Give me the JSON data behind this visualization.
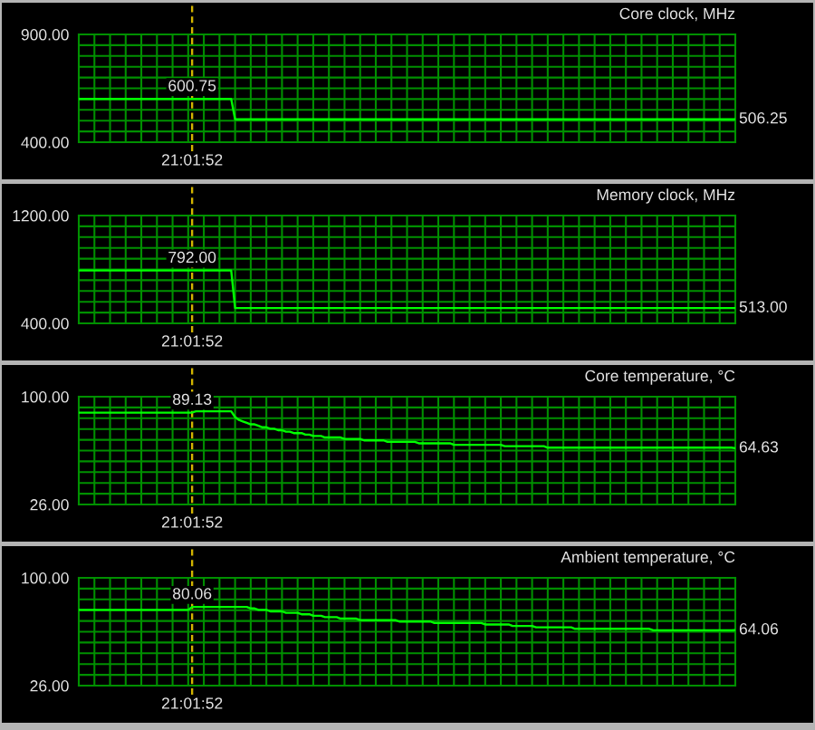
{
  "chart_data": [
    {
      "type": "line",
      "title": "Core clock, MHz",
      "color": "#00ff00",
      "grid": true,
      "categories": [
        null,
        null,
        null,
        null,
        null,
        null,
        null,
        null,
        null,
        null,
        null,
        null,
        null,
        null,
        null,
        null,
        null,
        null,
        null,
        null,
        null,
        null,
        null,
        null,
        null,
        null,
        null,
        null,
        null,
        "21:01:52",
        null,
        null,
        null,
        null,
        null,
        null,
        null,
        null,
        null,
        null,
        null,
        null,
        null,
        null,
        null,
        null,
        null,
        null,
        null,
        null,
        null,
        null,
        null,
        null,
        null,
        null,
        null,
        null,
        null,
        null,
        null,
        null,
        null,
        null,
        null,
        null,
        null,
        null,
        null,
        null,
        null,
        null,
        null,
        null,
        null,
        null,
        null,
        null,
        null,
        null,
        null,
        null,
        null,
        null,
        null,
        null,
        null,
        null,
        null,
        null,
        null,
        null,
        null,
        null,
        null,
        null,
        null,
        null,
        null,
        null,
        null,
        null,
        null,
        null,
        null,
        null,
        null,
        null,
        null,
        null,
        null,
        null,
        null,
        null,
        null,
        null,
        null,
        null,
        null,
        null,
        null,
        null,
        null,
        null,
        null,
        null,
        null,
        null,
        null,
        null,
        null,
        null,
        null,
        null,
        null,
        null,
        null,
        null,
        null,
        null,
        null,
        null,
        null,
        null,
        null,
        null,
        null,
        null,
        null,
        null,
        null,
        null,
        null,
        null,
        null,
        null,
        null,
        null,
        null,
        null,
        null,
        null,
        null,
        null,
        null,
        null,
        null,
        null,
        null
      ],
      "values": [
        600.75,
        600.75,
        600.75,
        600.75,
        600.75,
        600.75,
        600.75,
        600.75,
        600.75,
        600.75,
        600.75,
        600.75,
        600.75,
        600.75,
        600.75,
        600.75,
        600.75,
        600.75,
        600.75,
        600.75,
        600.75,
        600.75,
        600.75,
        600.75,
        600.75,
        600.75,
        600.75,
        600.75,
        600.75,
        600.75,
        600.75,
        600.75,
        600.75,
        600.75,
        600.75,
        600.75,
        600.75,
        600.75,
        600.75,
        600.75,
        506.25,
        506.25,
        506.25,
        506.25,
        506.25,
        506.25,
        506.25,
        506.25,
        506.25,
        506.25,
        506.25,
        506.25,
        506.25,
        506.25,
        506.25,
        506.25,
        506.25,
        506.25,
        506.25,
        506.25,
        506.25,
        506.25,
        506.25,
        506.25,
        506.25,
        506.25,
        506.25,
        506.25,
        506.25,
        506.25,
        506.25,
        506.25,
        506.25,
        506.25,
        506.25,
        506.25,
        506.25,
        506.25,
        506.25,
        506.25,
        506.25,
        506.25,
        506.25,
        506.25,
        506.25,
        506.25,
        506.25,
        506.25,
        506.25,
        506.25,
        506.25,
        506.25,
        506.25,
        506.25,
        506.25,
        506.25,
        506.25,
        506.25,
        506.25,
        506.25,
        506.25,
        506.25,
        506.25,
        506.25,
        506.25,
        506.25,
        506.25,
        506.25,
        506.25,
        506.25,
        506.25,
        506.25,
        506.25,
        506.25,
        506.25,
        506.25,
        506.25,
        506.25,
        506.25,
        506.25,
        506.25,
        506.25,
        506.25,
        506.25,
        506.25,
        506.25,
        506.25,
        506.25,
        506.25,
        506.25,
        506.25,
        506.25,
        506.25,
        506.25,
        506.25,
        506.25,
        506.25,
        506.25,
        506.25,
        506.25,
        506.25,
        506.25,
        506.25,
        506.25,
        506.25,
        506.25,
        506.25,
        506.25,
        506.25,
        506.25,
        506.25,
        506.25,
        506.25,
        506.25,
        506.25,
        506.25,
        506.25,
        506.25,
        506.25,
        506.25,
        506.25,
        506.25,
        506.25,
        506.25,
        506.25,
        506.25,
        506.25,
        506.25,
        506.25
      ],
      "value_labels": [
        null,
        null,
        null,
        null,
        null,
        null,
        null,
        null,
        null,
        null,
        null,
        null,
        null,
        null,
        null,
        null,
        null,
        null,
        null,
        null,
        null,
        null,
        null,
        null,
        null,
        null,
        null,
        null,
        null,
        "600.75",
        null,
        null,
        null,
        null,
        null,
        null,
        null,
        null,
        null,
        null,
        null,
        null,
        null,
        null,
        null,
        null,
        null,
        null,
        null,
        null,
        null,
        null,
        null,
        null,
        null,
        null,
        null,
        null,
        null,
        null,
        null,
        null,
        null,
        null,
        null,
        null,
        null,
        null,
        null,
        null,
        null,
        null,
        null,
        null,
        null,
        null,
        null,
        null,
        null,
        null,
        null,
        null,
        null,
        null,
        null,
        null,
        null,
        null,
        null,
        null,
        null,
        null,
        null,
        null,
        null,
        null,
        null,
        null,
        null,
        null,
        null,
        null,
        null,
        null,
        null,
        null,
        null,
        null,
        null,
        null,
        null,
        null,
        null,
        null,
        null,
        null,
        null,
        null,
        null,
        null,
        null,
        null,
        null,
        null,
        null,
        null,
        null,
        null,
        null,
        null,
        null,
        null,
        null,
        null,
        null,
        null,
        null,
        null,
        null,
        null,
        null,
        null,
        null,
        null,
        null,
        null,
        null,
        null,
        null,
        null,
        null,
        null,
        null,
        null,
        null,
        null,
        null,
        null,
        null,
        null,
        null,
        null,
        null,
        null,
        null,
        null,
        null,
        null,
        "506.25"
      ],
      "ylim": [
        400,
        900
      ],
      "yticks": [
        {
          "value": 400,
          "label": "400.00"
        },
        {
          "value": 450,
          "label": null
        },
        {
          "value": 500,
          "label": null
        },
        {
          "value": 550,
          "label": null
        },
        {
          "value": 600,
          "label": null
        },
        {
          "value": 650,
          "label": null
        },
        {
          "value": 700,
          "label": null
        },
        {
          "value": 750,
          "label": null
        },
        {
          "value": 800,
          "label": null
        },
        {
          "value": 850,
          "label": null
        },
        {
          "value": 900,
          "label": "900.00"
        }
      ],
      "ref_lines": [
        {
          "axis": "x",
          "value": "21:01:52",
          "color": "#d2b400",
          "line_style": "dashed"
        }
      ]
    },
    {
      "type": "line",
      "title": "Memory clock, MHz",
      "color": "#00ff00",
      "grid": true,
      "categories": [
        null,
        null,
        null,
        null,
        null,
        null,
        null,
        null,
        null,
        null,
        null,
        null,
        null,
        null,
        null,
        null,
        null,
        null,
        null,
        null,
        null,
        null,
        null,
        null,
        null,
        null,
        null,
        null,
        null,
        "21:01:52",
        null,
        null,
        null,
        null,
        null,
        null,
        null,
        null,
        null,
        null,
        null,
        null,
        null,
        null,
        null,
        null,
        null,
        null,
        null,
        null,
        null,
        null,
        null,
        null,
        null,
        null,
        null,
        null,
        null,
        null,
        null,
        null,
        null,
        null,
        null,
        null,
        null,
        null,
        null,
        null,
        null,
        null,
        null,
        null,
        null,
        null,
        null,
        null,
        null,
        null,
        null,
        null,
        null,
        null,
        null,
        null,
        null,
        null,
        null,
        null,
        null,
        null,
        null,
        null,
        null,
        null,
        null,
        null,
        null,
        null,
        null,
        null,
        null,
        null,
        null,
        null,
        null,
        null,
        null,
        null,
        null,
        null,
        null,
        null,
        null,
        null,
        null,
        null,
        null,
        null,
        null,
        null,
        null,
        null,
        null,
        null,
        null,
        null,
        null,
        null,
        null,
        null,
        null,
        null,
        null,
        null,
        null,
        null,
        null,
        null,
        null,
        null,
        null,
        null,
        null,
        null,
        null,
        null,
        null,
        null,
        null,
        null,
        null,
        null,
        null,
        null,
        null,
        null,
        null,
        null,
        null,
        null,
        null,
        null,
        null,
        null,
        null,
        null,
        null
      ],
      "values": [
        792,
        792,
        792,
        792,
        792,
        792,
        792,
        792,
        792,
        792,
        792,
        792,
        792,
        792,
        792,
        792,
        792,
        792,
        792,
        792,
        792,
        792,
        792,
        792,
        792,
        792,
        792,
        792,
        792,
        792,
        792,
        792,
        792,
        792,
        792,
        792,
        792,
        792,
        792,
        792,
        513,
        513,
        513,
        513,
        513,
        513,
        513,
        513,
        513,
        513,
        513,
        513,
        513,
        513,
        513,
        513,
        513,
        513,
        513,
        513,
        513,
        513,
        513,
        513,
        513,
        513,
        513,
        513,
        513,
        513,
        513,
        513,
        513,
        513,
        513,
        513,
        513,
        513,
        513,
        513,
        513,
        513,
        513,
        513,
        513,
        513,
        513,
        513,
        513,
        513,
        513,
        513,
        513,
        513,
        513,
        513,
        513,
        513,
        513,
        513,
        513,
        513,
        513,
        513,
        513,
        513,
        513,
        513,
        513,
        513,
        513,
        513,
        513,
        513,
        513,
        513,
        513,
        513,
        513,
        513,
        513,
        513,
        513,
        513,
        513,
        513,
        513,
        513,
        513,
        513,
        513,
        513,
        513,
        513,
        513,
        513,
        513,
        513,
        513,
        513,
        513,
        513,
        513,
        513,
        513,
        513,
        513,
        513,
        513,
        513,
        513,
        513,
        513,
        513,
        513,
        513,
        513,
        513,
        513,
        513,
        513,
        513,
        513,
        513,
        513,
        513,
        513,
        513,
        513
      ],
      "value_labels": [
        null,
        null,
        null,
        null,
        null,
        null,
        null,
        null,
        null,
        null,
        null,
        null,
        null,
        null,
        null,
        null,
        null,
        null,
        null,
        null,
        null,
        null,
        null,
        null,
        null,
        null,
        null,
        null,
        null,
        "792.00",
        null,
        null,
        null,
        null,
        null,
        null,
        null,
        null,
        null,
        null,
        null,
        null,
        null,
        null,
        null,
        null,
        null,
        null,
        null,
        null,
        null,
        null,
        null,
        null,
        null,
        null,
        null,
        null,
        null,
        null,
        null,
        null,
        null,
        null,
        null,
        null,
        null,
        null,
        null,
        null,
        null,
        null,
        null,
        null,
        null,
        null,
        null,
        null,
        null,
        null,
        null,
        null,
        null,
        null,
        null,
        null,
        null,
        null,
        null,
        null,
        null,
        null,
        null,
        null,
        null,
        null,
        null,
        null,
        null,
        null,
        null,
        null,
        null,
        null,
        null,
        null,
        null,
        null,
        null,
        null,
        null,
        null,
        null,
        null,
        null,
        null,
        null,
        null,
        null,
        null,
        null,
        null,
        null,
        null,
        null,
        null,
        null,
        null,
        null,
        null,
        null,
        null,
        null,
        null,
        null,
        null,
        null,
        null,
        null,
        null,
        null,
        null,
        null,
        null,
        null,
        null,
        null,
        null,
        null,
        null,
        null,
        null,
        null,
        null,
        null,
        null,
        null,
        null,
        null,
        null,
        null,
        null,
        null,
        null,
        null,
        null,
        null,
        null,
        "513.00"
      ],
      "ylim": [
        400,
        1200
      ],
      "yticks": [
        {
          "value": 400,
          "label": "400.00"
        },
        {
          "value": 480,
          "label": null
        },
        {
          "value": 560,
          "label": null
        },
        {
          "value": 640,
          "label": null
        },
        {
          "value": 720,
          "label": null
        },
        {
          "value": 800,
          "label": null
        },
        {
          "value": 880,
          "label": null
        },
        {
          "value": 960,
          "label": null
        },
        {
          "value": 1040,
          "label": null
        },
        {
          "value": 1120,
          "label": null
        },
        {
          "value": 1200,
          "label": "1200.00"
        }
      ],
      "ref_lines": [
        {
          "axis": "x",
          "value": "21:01:52",
          "color": "#d2b400",
          "line_style": "dashed"
        }
      ]
    },
    {
      "type": "line",
      "title": "Core temperature, °C",
      "color": "#00ff00",
      "grid": true,
      "categories": [
        null,
        null,
        null,
        null,
        null,
        null,
        null,
        null,
        null,
        null,
        null,
        null,
        null,
        null,
        null,
        null,
        null,
        null,
        null,
        null,
        null,
        null,
        null,
        null,
        null,
        null,
        null,
        null,
        null,
        "21:01:52",
        null,
        null,
        null,
        null,
        null,
        null,
        null,
        null,
        null,
        null,
        null,
        null,
        null,
        null,
        null,
        null,
        null,
        null,
        null,
        null,
        null,
        null,
        null,
        null,
        null,
        null,
        null,
        null,
        null,
        null,
        null,
        null,
        null,
        null,
        null,
        null,
        null,
        null,
        null,
        null,
        null,
        null,
        null,
        null,
        null,
        null,
        null,
        null,
        null,
        null,
        null,
        null,
        null,
        null,
        null,
        null,
        null,
        null,
        null,
        null,
        null,
        null,
        null,
        null,
        null,
        null,
        null,
        null,
        null,
        null,
        null,
        null,
        null,
        null,
        null,
        null,
        null,
        null,
        null,
        null,
        null,
        null,
        null,
        null,
        null,
        null,
        null,
        null,
        null,
        null,
        null,
        null,
        null,
        null,
        null,
        null,
        null,
        null,
        null,
        null,
        null,
        null,
        null,
        null,
        null,
        null,
        null,
        null,
        null,
        null,
        null,
        null,
        null,
        null,
        null,
        null,
        null,
        null,
        null,
        null,
        null,
        null,
        null,
        null,
        null,
        null,
        null,
        null,
        null,
        null,
        null,
        null,
        null,
        null,
        null,
        null,
        null,
        null,
        null
      ],
      "values": [
        89,
        89,
        89,
        89,
        89,
        89,
        89,
        89,
        89,
        89,
        89,
        89,
        89,
        89,
        89,
        89,
        89,
        89,
        89,
        89,
        89,
        89,
        89,
        89,
        89,
        89,
        89,
        89,
        89,
        89.13,
        90,
        90,
        90,
        90,
        90,
        90,
        90,
        90,
        90,
        90,
        86,
        84,
        83,
        82,
        81,
        81,
        80,
        79,
        79,
        78,
        78,
        77,
        77,
        76,
        76,
        75,
        75,
        75,
        74,
        74,
        73,
        73,
        73,
        72,
        72,
        72,
        72,
        72,
        71,
        71,
        71,
        71,
        71,
        70,
        70,
        70,
        70,
        70,
        70,
        69,
        69,
        69,
        69,
        69,
        69,
        69,
        69,
        68,
        68,
        68,
        68,
        68,
        68,
        68,
        68,
        68,
        67,
        67,
        67,
        67,
        67,
        67,
        67,
        67,
        67,
        67,
        67,
        67,
        67,
        66,
        66,
        66,
        66,
        66,
        66,
        66,
        66,
        66,
        66,
        66,
        65,
        65,
        65,
        65,
        65,
        65,
        65,
        65,
        65,
        65,
        65,
        65,
        65,
        65,
        65,
        65,
        65,
        65,
        65,
        65,
        65,
        65,
        65,
        65,
        65,
        65,
        65,
        65,
        65,
        65,
        65,
        65,
        65,
        65,
        65,
        65,
        65,
        65,
        65,
        65,
        65,
        65,
        65,
        65,
        65,
        65,
        65,
        65,
        64.63
      ],
      "value_labels": [
        null,
        null,
        null,
        null,
        null,
        null,
        null,
        null,
        null,
        null,
        null,
        null,
        null,
        null,
        null,
        null,
        null,
        null,
        null,
        null,
        null,
        null,
        null,
        null,
        null,
        null,
        null,
        null,
        null,
        "89.13",
        null,
        null,
        null,
        null,
        null,
        null,
        null,
        null,
        null,
        null,
        null,
        null,
        null,
        null,
        null,
        null,
        null,
        null,
        null,
        null,
        null,
        null,
        null,
        null,
        null,
        null,
        null,
        null,
        null,
        null,
        null,
        null,
        null,
        null,
        null,
        null,
        null,
        null,
        null,
        null,
        null,
        null,
        null,
        null,
        null,
        null,
        null,
        null,
        null,
        null,
        null,
        null,
        null,
        null,
        null,
        null,
        null,
        null,
        null,
        null,
        null,
        null,
        null,
        null,
        null,
        null,
        null,
        null,
        null,
        null,
        null,
        null,
        null,
        null,
        null,
        null,
        null,
        null,
        null,
        null,
        null,
        null,
        null,
        null,
        null,
        null,
        null,
        null,
        null,
        null,
        null,
        null,
        null,
        null,
        null,
        null,
        null,
        null,
        null,
        null,
        null,
        null,
        null,
        null,
        null,
        null,
        null,
        null,
        null,
        null,
        null,
        null,
        null,
        null,
        null,
        null,
        null,
        null,
        null,
        null,
        null,
        null,
        null,
        null,
        null,
        null,
        null,
        null,
        null,
        null,
        null,
        null,
        null,
        null,
        null,
        null,
        null,
        null,
        "64.63"
      ],
      "ylim": [
        26,
        100
      ],
      "yticks": [
        {
          "value": 26,
          "label": "26.00"
        },
        {
          "value": 33.4,
          "label": null
        },
        {
          "value": 40.8,
          "label": null
        },
        {
          "value": 48.2,
          "label": null
        },
        {
          "value": 55.6,
          "label": null
        },
        {
          "value": 63,
          "label": null
        },
        {
          "value": 70.4,
          "label": null
        },
        {
          "value": 77.8,
          "label": null
        },
        {
          "value": 85.2,
          "label": null
        },
        {
          "value": 92.6,
          "label": null
        },
        {
          "value": 100,
          "label": "100.00"
        }
      ],
      "ref_lines": [
        {
          "axis": "x",
          "value": "21:01:52",
          "color": "#d2b400",
          "line_style": "dashed"
        }
      ]
    },
    {
      "type": "line",
      "title": "Ambient temperature, °C",
      "color": "#00ff00",
      "grid": true,
      "categories": [
        null,
        null,
        null,
        null,
        null,
        null,
        null,
        null,
        null,
        null,
        null,
        null,
        null,
        null,
        null,
        null,
        null,
        null,
        null,
        null,
        null,
        null,
        null,
        null,
        null,
        null,
        null,
        null,
        null,
        "21:01:52",
        null,
        null,
        null,
        null,
        null,
        null,
        null,
        null,
        null,
        null,
        null,
        null,
        null,
        null,
        null,
        null,
        null,
        null,
        null,
        null,
        null,
        null,
        null,
        null,
        null,
        null,
        null,
        null,
        null,
        null,
        null,
        null,
        null,
        null,
        null,
        null,
        null,
        null,
        null,
        null,
        null,
        null,
        null,
        null,
        null,
        null,
        null,
        null,
        null,
        null,
        null,
        null,
        null,
        null,
        null,
        null,
        null,
        null,
        null,
        null,
        null,
        null,
        null,
        null,
        null,
        null,
        null,
        null,
        null,
        null,
        null,
        null,
        null,
        null,
        null,
        null,
        null,
        null,
        null,
        null,
        null,
        null,
        null,
        null,
        null,
        null,
        null,
        null,
        null,
        null,
        null,
        null,
        null,
        null,
        null,
        null,
        null,
        null,
        null,
        null,
        null,
        null,
        null,
        null,
        null,
        null,
        null,
        null,
        null,
        null,
        null,
        null,
        null,
        null,
        null,
        null,
        null,
        null,
        null,
        null,
        null,
        null,
        null,
        null,
        null,
        null,
        null,
        null,
        null,
        null,
        null,
        null,
        null,
        null,
        null,
        null,
        null,
        null,
        null
      ],
      "values": [
        78,
        78,
        78,
        78,
        78,
        78,
        78,
        78,
        78,
        78,
        78,
        78,
        78,
        78,
        78,
        78,
        78,
        78,
        78,
        78,
        78,
        78,
        78,
        78,
        78,
        78,
        78,
        78,
        78,
        80.06,
        80,
        80,
        80,
        80,
        80,
        80,
        80,
        80,
        80,
        80,
        80,
        80,
        80,
        80,
        79,
        79,
        78,
        78,
        78,
        77,
        77,
        77,
        77,
        76,
        76,
        76,
        76,
        75,
        75,
        75,
        74,
        74,
        74,
        73,
        73,
        73,
        73,
        72,
        72,
        72,
        72,
        72,
        71,
        71,
        71,
        71,
        71,
        71,
        71,
        71,
        71,
        71,
        70,
        70,
        70,
        70,
        70,
        70,
        70,
        70,
        70,
        69,
        69,
        69,
        69,
        69,
        69,
        69,
        69,
        69,
        69,
        69,
        69,
        69,
        68,
        68,
        68,
        68,
        68,
        68,
        68,
        67,
        67,
        67,
        67,
        67,
        67,
        66,
        66,
        66,
        66,
        66,
        66,
        66,
        66,
        66,
        66,
        65,
        65,
        65,
        65,
        65,
        65,
        65,
        65,
        65,
        65,
        65,
        65,
        65,
        65,
        65,
        65,
        65,
        65,
        65,
        65,
        64,
        64,
        64,
        64,
        64,
        64,
        64,
        64,
        64,
        64,
        64,
        64,
        64,
        64,
        64,
        64,
        64,
        64,
        64,
        64,
        64,
        64.06
      ],
      "value_labels": [
        null,
        null,
        null,
        null,
        null,
        null,
        null,
        null,
        null,
        null,
        null,
        null,
        null,
        null,
        null,
        null,
        null,
        null,
        null,
        null,
        null,
        null,
        null,
        null,
        null,
        null,
        null,
        null,
        null,
        "80.06",
        null,
        null,
        null,
        null,
        null,
        null,
        null,
        null,
        null,
        null,
        null,
        null,
        null,
        null,
        null,
        null,
        null,
        null,
        null,
        null,
        null,
        null,
        null,
        null,
        null,
        null,
        null,
        null,
        null,
        null,
        null,
        null,
        null,
        null,
        null,
        null,
        null,
        null,
        null,
        null,
        null,
        null,
        null,
        null,
        null,
        null,
        null,
        null,
        null,
        null,
        null,
        null,
        null,
        null,
        null,
        null,
        null,
        null,
        null,
        null,
        null,
        null,
        null,
        null,
        null,
        null,
        null,
        null,
        null,
        null,
        null,
        null,
        null,
        null,
        null,
        null,
        null,
        null,
        null,
        null,
        null,
        null,
        null,
        null,
        null,
        null,
        null,
        null,
        null,
        null,
        null,
        null,
        null,
        null,
        null,
        null,
        null,
        null,
        null,
        null,
        null,
        null,
        null,
        null,
        null,
        null,
        null,
        null,
        null,
        null,
        null,
        null,
        null,
        null,
        null,
        null,
        null,
        null,
        null,
        null,
        null,
        null,
        null,
        null,
        null,
        null,
        null,
        null,
        null,
        null,
        null,
        null,
        null,
        null,
        null,
        null,
        null,
        null,
        "64.06"
      ],
      "ylim": [
        26,
        100
      ],
      "yticks": [
        {
          "value": 26,
          "label": "26.00"
        },
        {
          "value": 33.4,
          "label": null
        },
        {
          "value": 40.8,
          "label": null
        },
        {
          "value": 48.2,
          "label": null
        },
        {
          "value": 55.6,
          "label": null
        },
        {
          "value": 63,
          "label": null
        },
        {
          "value": 70.4,
          "label": null
        },
        {
          "value": 77.8,
          "label": null
        },
        {
          "value": 85.2,
          "label": null
        },
        {
          "value": 92.6,
          "label": null
        },
        {
          "value": 100,
          "label": "100.00"
        }
      ],
      "ref_lines": [
        {
          "axis": "x",
          "value": "21:01:52",
          "color": "#d2b400",
          "line_style": "dashed"
        }
      ]
    }
  ]
}
